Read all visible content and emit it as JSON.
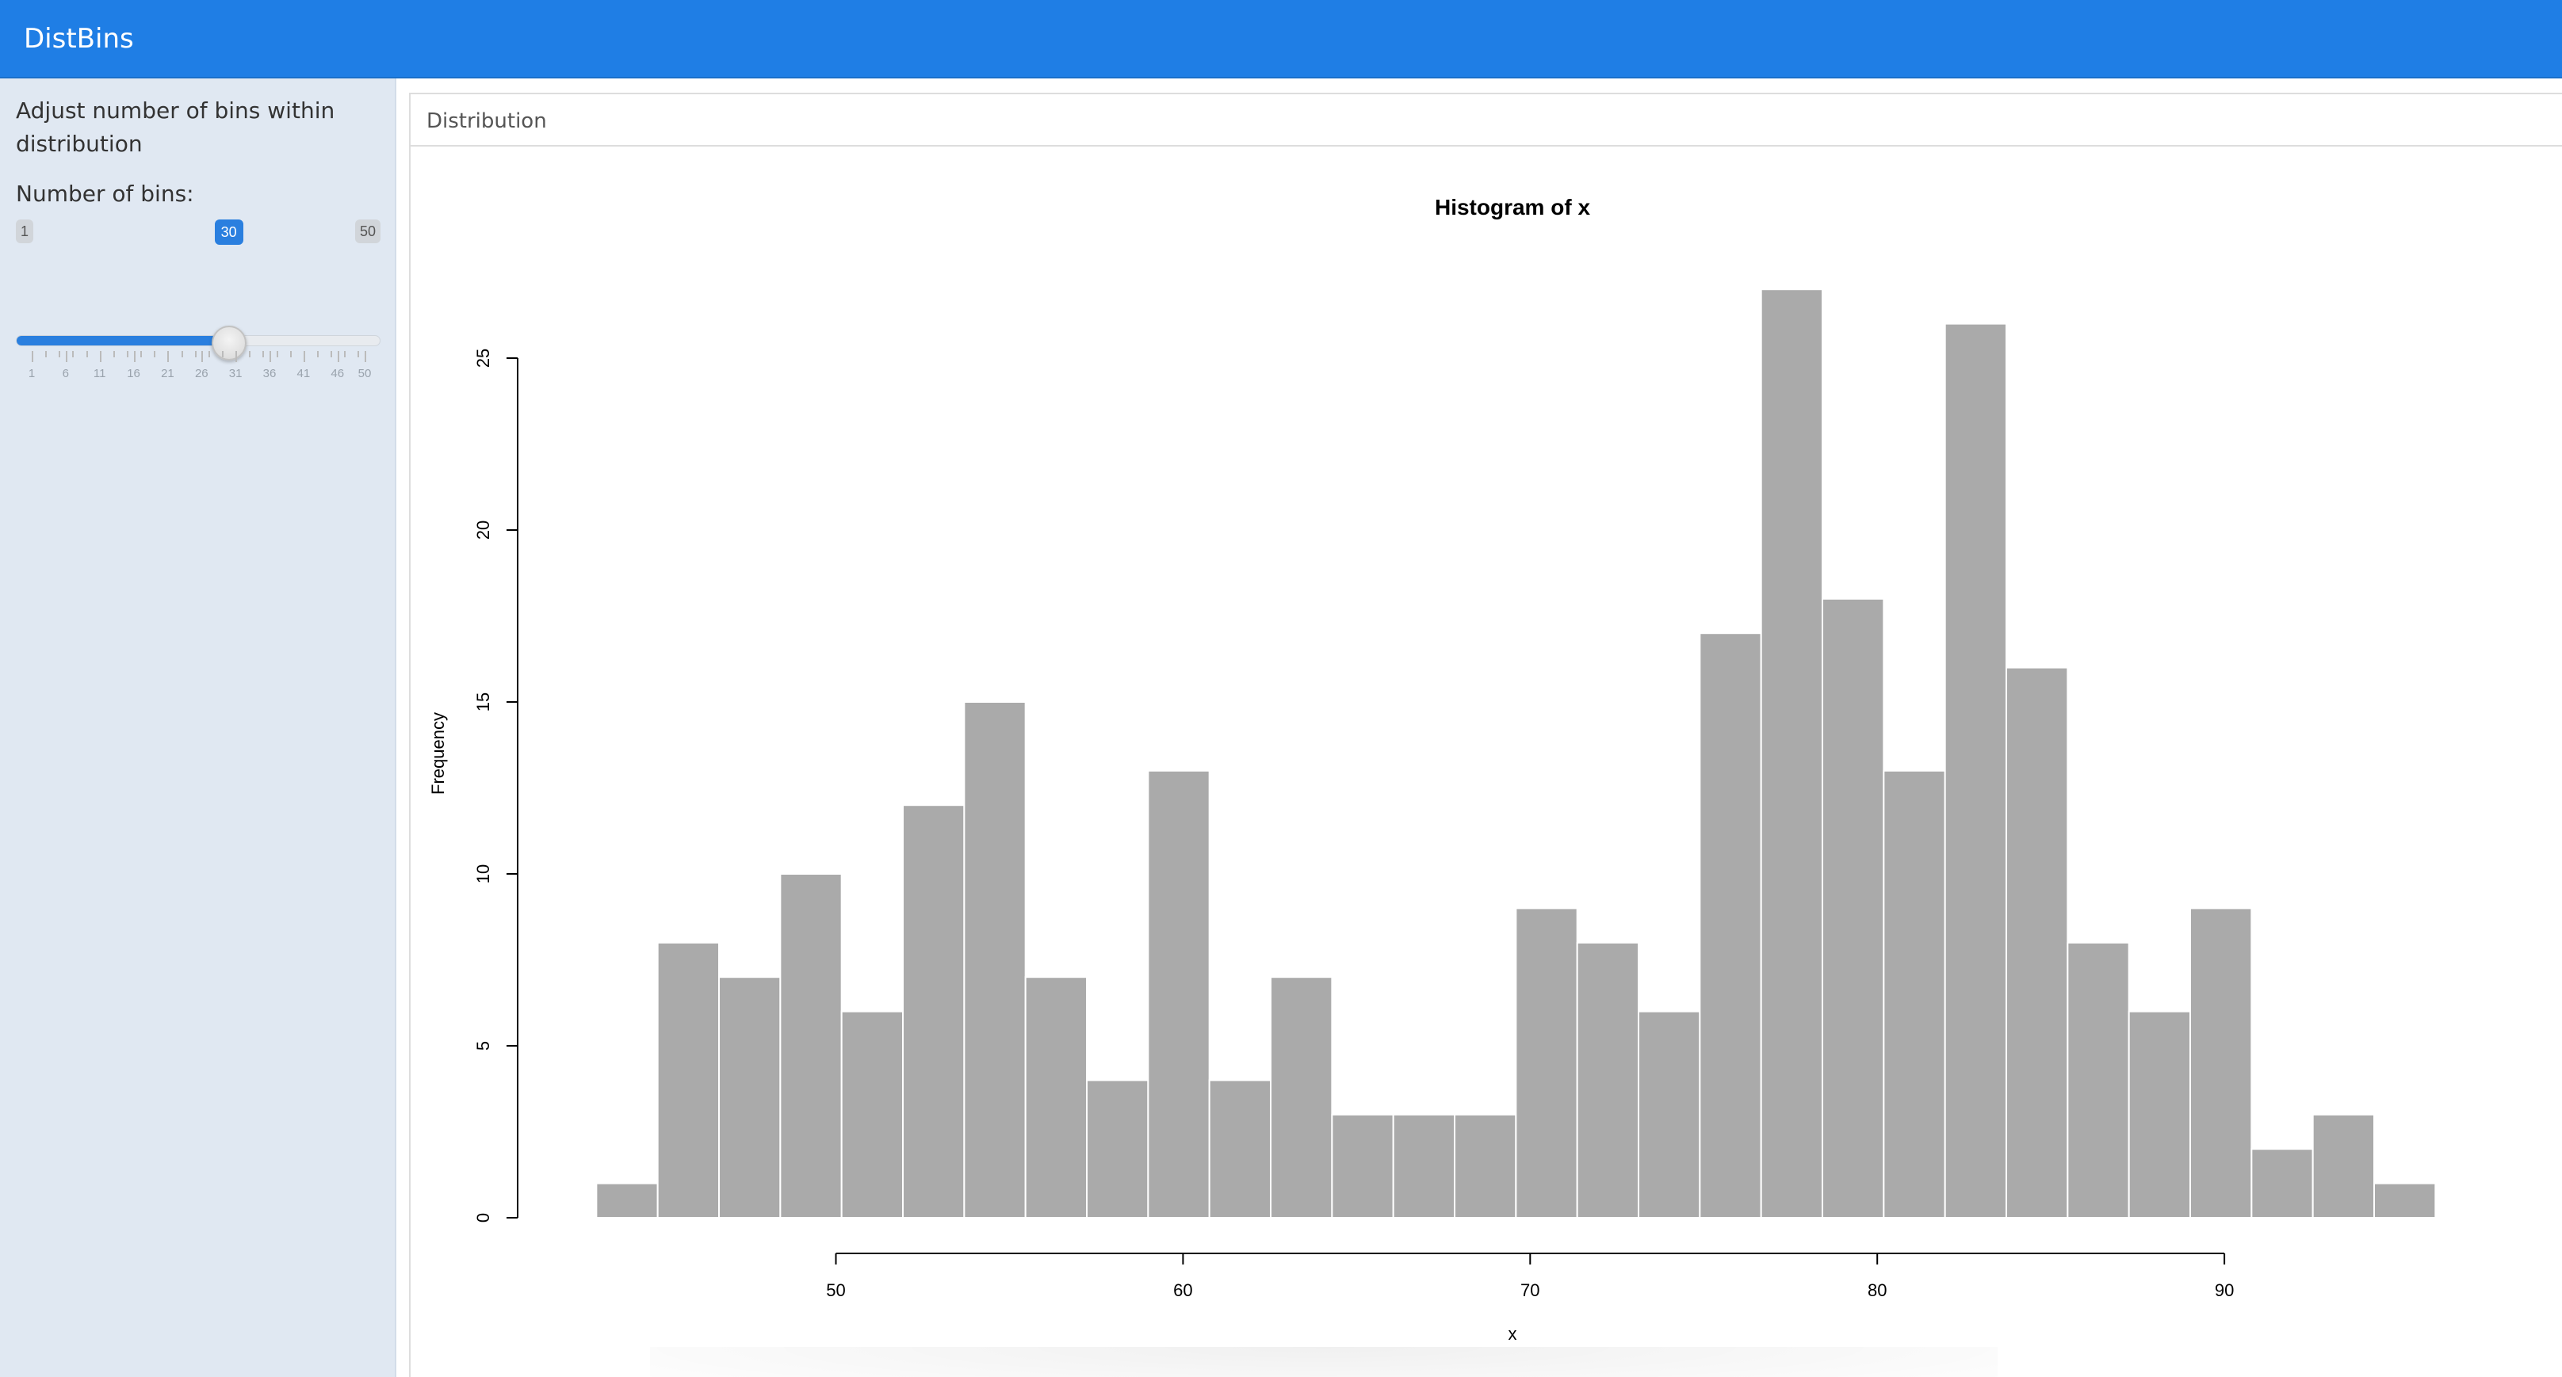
{
  "header": {
    "app_title": "DistBins"
  },
  "sidebar": {
    "description": "Adjust number of bins within distribution",
    "bins_label": "Number of bins:",
    "slider": {
      "min_label": "1",
      "max_label": "50",
      "value_label": "30",
      "min": 1,
      "max": 50,
      "value": 30,
      "tick_labels": [
        "1",
        "6",
        "11",
        "16",
        "21",
        "26",
        "31",
        "36",
        "41",
        "46",
        "50"
      ],
      "accent": "#2a7fdf"
    }
  },
  "main": {
    "tab_title": "Distribution"
  },
  "chart_data": {
    "type": "bar",
    "title": "Histogram of x",
    "xlabel": "x",
    "ylabel": "Frequency",
    "bar_color": "#aaaaaa",
    "xlim_ticks": [
      "50",
      "60",
      "70",
      "80",
      "90"
    ],
    "x_ticks": [
      50,
      60,
      70,
      80,
      90
    ],
    "y_ticks": [
      0,
      5,
      10,
      15,
      20,
      25
    ],
    "y_tick_labels": [
      "0",
      "5",
      "10",
      "15",
      "20",
      "25"
    ],
    "bin_start": 43.1,
    "bin_width": 1.766,
    "values": [
      1,
      8,
      7,
      10,
      6,
      12,
      15,
      7,
      4,
      13,
      4,
      7,
      3,
      3,
      3,
      9,
      8,
      6,
      17,
      27,
      18,
      13,
      26,
      16,
      8,
      6,
      9,
      2,
      3,
      1
    ]
  }
}
